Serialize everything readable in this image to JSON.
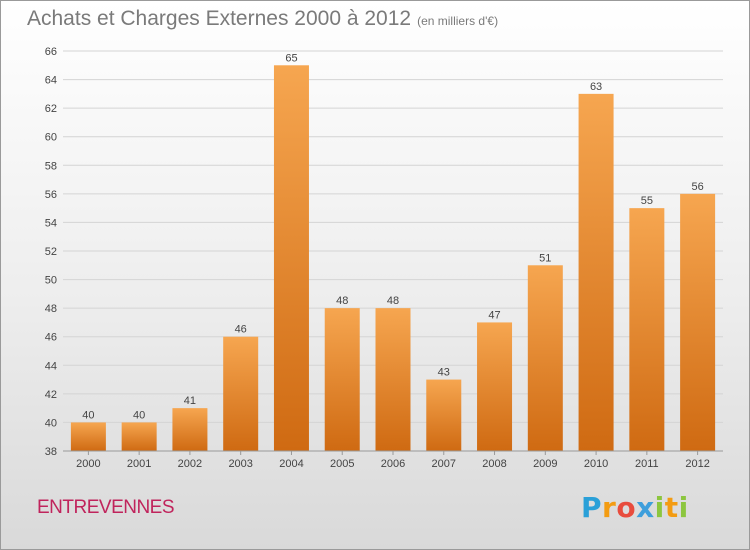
{
  "header": {
    "title": "Achats et Charges Externes 2000 à 2012",
    "subtitle": "(en milliers d'€)"
  },
  "footer": {
    "commune": "ENTREVENNES",
    "logo_letters": [
      {
        "ch": "P",
        "color": "#2aa0d8"
      },
      {
        "ch": "r",
        "color": "#f39c12"
      },
      {
        "ch": "o",
        "color": "#e84c3d"
      },
      {
        "ch": "x",
        "color": "#3e9fdc"
      },
      {
        "ch": "i",
        "color": "#8cc63f"
      },
      {
        "ch": "t",
        "color": "#f39c12"
      },
      {
        "ch": "i",
        "color": "#8cc63f"
      }
    ]
  },
  "colors": {
    "bar_light": "#f6a650",
    "bar_dark": "#cf6a12",
    "grid": "#d4d4d4",
    "axis_text": "#444444"
  },
  "chart_data": {
    "type": "bar",
    "title": "Achats et Charges Externes 2000 à 2012",
    "subtitle": "(en milliers d'€)",
    "xlabel": "",
    "ylabel": "",
    "categories": [
      "2000",
      "2001",
      "2002",
      "2003",
      "2004",
      "2005",
      "2006",
      "2007",
      "2008",
      "2009",
      "2010",
      "2011",
      "2012"
    ],
    "values": [
      40,
      40,
      41,
      46,
      65,
      48,
      48,
      43,
      47,
      51,
      63,
      55,
      56
    ],
    "ylim": [
      38,
      66
    ],
    "yticks": [
      38,
      40,
      42,
      44,
      46,
      48,
      50,
      52,
      54,
      56,
      58,
      60,
      62,
      64,
      66
    ],
    "grid": true,
    "data_labels": true
  }
}
